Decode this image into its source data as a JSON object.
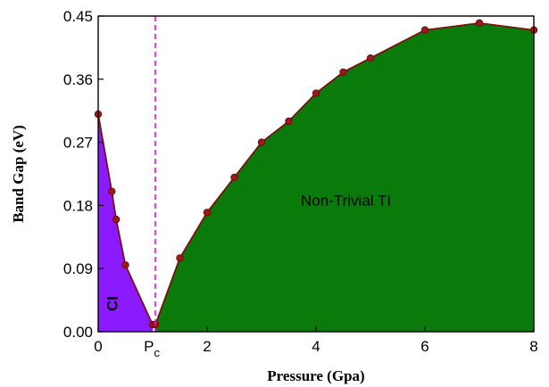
{
  "chart_data": {
    "type": "area",
    "xlabel": "Pressure (Gpa)",
    "ylabel": "Band Gap (eV)",
    "xlim": [
      0,
      8
    ],
    "ylim": [
      0,
      0.45
    ],
    "x_ticks": [
      {
        "value": 0,
        "label": "0"
      },
      {
        "value": 2,
        "label": "2"
      },
      {
        "value": 4,
        "label": "4"
      },
      {
        "value": 6,
        "label": "6"
      },
      {
        "value": 8,
        "label": "8"
      }
    ],
    "pc_label": {
      "main": "P",
      "sub": "c",
      "value": 1.05
    },
    "y_ticks": [
      {
        "value": 0,
        "label": "0.00"
      },
      {
        "value": 0.09,
        "label": "0.09"
      },
      {
        "value": 0.18,
        "label": "0.18"
      },
      {
        "value": 0.27,
        "label": "0.27"
      },
      {
        "value": 0.36,
        "label": "0.36"
      },
      {
        "value": 0.45,
        "label": "0.45"
      }
    ],
    "critical_pressure": 1.05,
    "grid": false,
    "series": [
      {
        "region": "CI",
        "color": "#8c1aff",
        "points": [
          [
            0,
            0.31
          ],
          [
            0.25,
            0.2
          ],
          [
            0.33,
            0.16
          ],
          [
            0.5,
            0.095
          ],
          [
            1.0,
            0.01
          ]
        ]
      },
      {
        "region": "Non-Trivial TI",
        "color": "#0a7a0a",
        "points": [
          [
            1.05,
            0.01
          ],
          [
            1.5,
            0.105
          ],
          [
            2.0,
            0.17
          ],
          [
            2.5,
            0.22
          ],
          [
            3.0,
            0.27
          ],
          [
            3.5,
            0.3
          ],
          [
            4.0,
            0.34
          ],
          [
            4.5,
            0.37
          ],
          [
            5.0,
            0.39
          ],
          [
            6.0,
            0.43
          ],
          [
            7.0,
            0.44
          ],
          [
            8.0,
            0.43
          ]
        ]
      }
    ],
    "line_color": "#7a1010",
    "marker_color": "#a01818",
    "pc_line_color": "#ff00ff",
    "annotations": [
      {
        "text": "CI",
        "x": 0.35,
        "y": 0.04,
        "rotate": -90
      },
      {
        "text": "Non-Trivial TI",
        "x": 4.55,
        "y": 0.18,
        "rotate": 0
      }
    ]
  }
}
